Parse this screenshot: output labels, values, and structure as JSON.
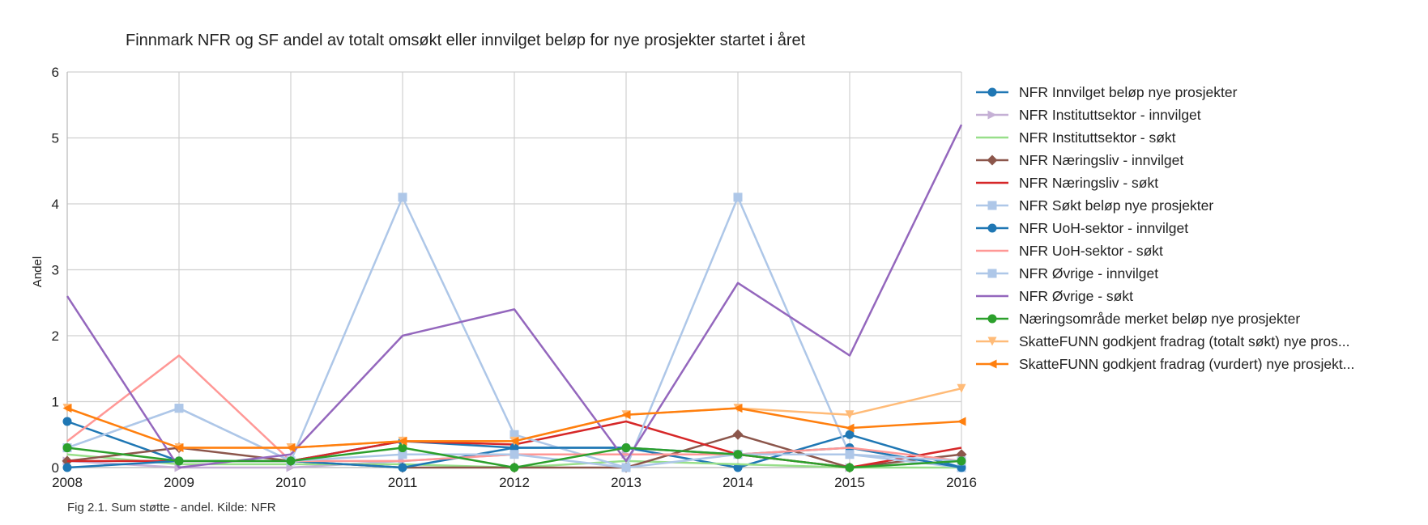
{
  "chart_data": {
    "type": "line",
    "title": "Finnmark NFR og SF andel av totalt omsøkt eller innvilget beløp for nye prosjekter startet i året",
    "xlabel": "",
    "ylabel": "Andel",
    "x": [
      2008,
      2009,
      2010,
      2011,
      2012,
      2013,
      2014,
      2015,
      2016
    ],
    "x_tick_labels": [
      "2008",
      "2009",
      "2010",
      "2011",
      "2012",
      "2013",
      "2014",
      "2015",
      "2016"
    ],
    "ylim": [
      0,
      6
    ],
    "y_ticks": [
      0,
      1,
      2,
      3,
      4,
      5,
      6
    ],
    "grid": true,
    "legend_position": "right",
    "series": [
      {
        "name": "NFR Innvilget beløp nye prosjekter",
        "color": "#1f77b4",
        "marker": "circle",
        "values": [
          0.7,
          0.1,
          0.1,
          0.4,
          0.3,
          0.3,
          0.0,
          0.5,
          0.0
        ]
      },
      {
        "name": "NFR Instituttsektor - innvilget",
        "color": "#c5b0d5",
        "marker": "triangle-right",
        "values": [
          0.1,
          0.0,
          0.0,
          0.1,
          0.2,
          0.2,
          0.2,
          0.0,
          0.1
        ]
      },
      {
        "name": "NFR Instituttsektor - søkt",
        "color": "#98df8a",
        "marker": "none",
        "values": [
          0.2,
          0.05,
          0.05,
          0.05,
          0.0,
          0.1,
          0.05,
          0.0,
          0.0
        ]
      },
      {
        "name": "NFR Næringsliv - innvilget",
        "color": "#8c564b",
        "marker": "diamond",
        "values": [
          0.1,
          0.3,
          0.1,
          0.0,
          0.0,
          0.0,
          0.5,
          0.0,
          0.2
        ]
      },
      {
        "name": "NFR Næringsliv - søkt",
        "color": "#d62728",
        "marker": "none",
        "values": [
          0.1,
          0.1,
          0.1,
          0.4,
          0.35,
          0.7,
          0.2,
          0.0,
          0.3
        ]
      },
      {
        "name": "NFR Søkt beløp nye prosjekter",
        "color": "#aec7e8",
        "marker": "square",
        "values": [
          0.3,
          0.9,
          0.1,
          4.1,
          0.5,
          0.0,
          4.1,
          0.2,
          0.0
        ]
      },
      {
        "name": "NFR UoH-sektor - innvilget",
        "color": "#1f77b4",
        "marker": "circle",
        "values": [
          0.0,
          0.1,
          0.1,
          0.0,
          0.3,
          0.3,
          0.2,
          0.3,
          0.0
        ]
      },
      {
        "name": "NFR UoH-sektor - søkt",
        "color": "#ff9896",
        "marker": "none",
        "values": [
          0.4,
          1.7,
          0.1,
          0.1,
          0.2,
          0.2,
          0.2,
          0.3,
          0.1
        ]
      },
      {
        "name": "NFR Øvrige - innvilget",
        "color": "#aec7e8",
        "marker": "square",
        "values": [
          0.3,
          0.9,
          0.1,
          0.2,
          0.2,
          0.0,
          0.2,
          0.2,
          0.1
        ]
      },
      {
        "name": "NFR Øvrige - søkt",
        "color": "#9467bd",
        "marker": "none",
        "values": [
          2.6,
          0.0,
          0.2,
          2.0,
          2.4,
          0.1,
          2.8,
          1.7,
          5.2
        ]
      },
      {
        "name": "Næringsområde merket beløp nye prosjekter",
        "color": "#2ca02c",
        "marker": "circle",
        "values": [
          0.3,
          0.1,
          0.1,
          0.3,
          0.0,
          0.3,
          0.2,
          0.0,
          0.1
        ]
      },
      {
        "name": "SkatteFUNN godkjent fradrag (totalt søkt) nye pros...",
        "color": "#ffbb78",
        "marker": "triangle-down",
        "values": [
          0.9,
          0.3,
          0.3,
          0.4,
          0.4,
          0.8,
          0.9,
          0.8,
          1.2
        ]
      },
      {
        "name": "SkatteFUNN godkjent fradrag (vurdert) nye prosjekt...",
        "color": "#ff7f0e",
        "marker": "triangle-left",
        "values": [
          0.9,
          0.3,
          0.3,
          0.4,
          0.4,
          0.8,
          0.9,
          0.6,
          0.7
        ]
      }
    ],
    "caption": "Fig 2.1. Sum støtte - andel. Kilde: NFR"
  }
}
